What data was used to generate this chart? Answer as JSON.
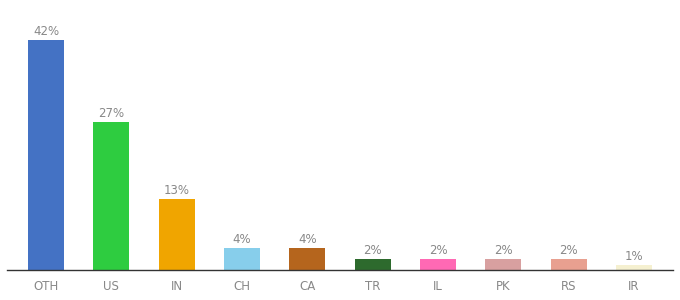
{
  "categories": [
    "OTH",
    "US",
    "IN",
    "CH",
    "CA",
    "TR",
    "IL",
    "PK",
    "RS",
    "IR"
  ],
  "values": [
    42,
    27,
    13,
    4,
    4,
    2,
    2,
    2,
    2,
    1
  ],
  "bar_colors": [
    "#4472c4",
    "#2ecc40",
    "#f0a500",
    "#87ceeb",
    "#b5651d",
    "#2d6a2d",
    "#ff69b4",
    "#d8a0a0",
    "#e8a090",
    "#f5f0d0"
  ],
  "background_color": "#ffffff",
  "label_fontsize": 8.5,
  "tick_fontsize": 8.5,
  "ylim": [
    0,
    48
  ]
}
